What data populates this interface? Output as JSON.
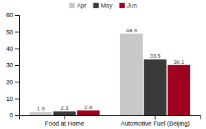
{
  "chart_data": {
    "type": "bar",
    "categories": [
      "Food at Home",
      "Automotive Fuel (Beijing)"
    ],
    "series": [
      {
        "name": "Apr",
        "color": "#c8c8c8",
        "values": [
          1.9,
          48.9
        ]
      },
      {
        "name": "May",
        "color": "#3a3a3a",
        "values": [
          2.3,
          33.5
        ]
      },
      {
        "name": "Jun",
        "color": "#a00020",
        "values": [
          2.9,
          30.1
        ]
      }
    ],
    "ylim": [
      0,
      60
    ],
    "yticks": [
      0,
      10,
      20,
      30,
      40,
      50,
      60
    ],
    "grid": false,
    "legend": "top",
    "data_labels": true
  }
}
